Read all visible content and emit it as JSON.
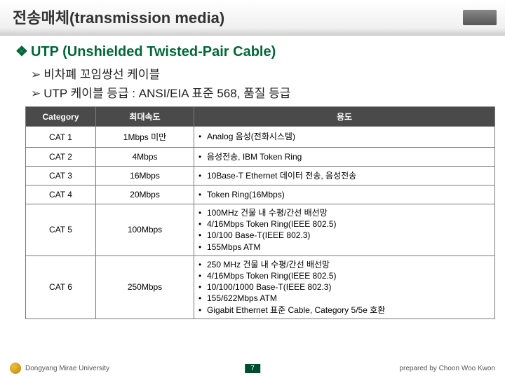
{
  "title": "전송매체(transmission media)",
  "heading": "UTP (Unshielded Twisted-Pair Cable)",
  "bullets": [
    "비차폐 꼬임쌍선 케이블",
    "UTP 케이블 등급 : ANSI/EIA 표준 568, 품질 등급"
  ],
  "table": {
    "headers": [
      "Category",
      "최대속도",
      "용도"
    ],
    "rows": [
      {
        "cat": "CAT 1",
        "speed": "1Mbps 미만",
        "uses": [
          "Analog 음성(전화시스템)"
        ]
      },
      {
        "cat": "CAT 2",
        "speed": "4Mbps",
        "uses": [
          "음성전송, IBM Token Ring"
        ]
      },
      {
        "cat": "CAT 3",
        "speed": "16Mbps",
        "uses": [
          "10Base-T Ethernet 데이터 전송, 음성전송"
        ]
      },
      {
        "cat": "CAT 4",
        "speed": "20Mbps",
        "uses": [
          "Token Ring(16Mbps)"
        ]
      },
      {
        "cat": "CAT 5",
        "speed": "100Mbps",
        "uses": [
          "100MHz 건물 내 수평/간선 배선망",
          "4/16Mbps Token Ring(IEEE 802.5)",
          "10/100 Base-T(IEEE 802.3)",
          "155Mbps ATM"
        ]
      },
      {
        "cat": "CAT 6",
        "speed": "250Mbps",
        "uses": [
          "250 MHz 건물 내 수평/간선 배선망",
          "4/16Mbps Token Ring(IEEE 802.5)",
          "10/100/1000 Base-T(IEEE 802.3)",
          "155/622Mbps ATM",
          "Gigabit Ethernet 표준 Cable, Category 5/5e 호환"
        ]
      }
    ]
  },
  "footer": {
    "left": "Dongyang Mirae University",
    "page": "7",
    "right": "prepared by Choon Woo Kwon"
  }
}
